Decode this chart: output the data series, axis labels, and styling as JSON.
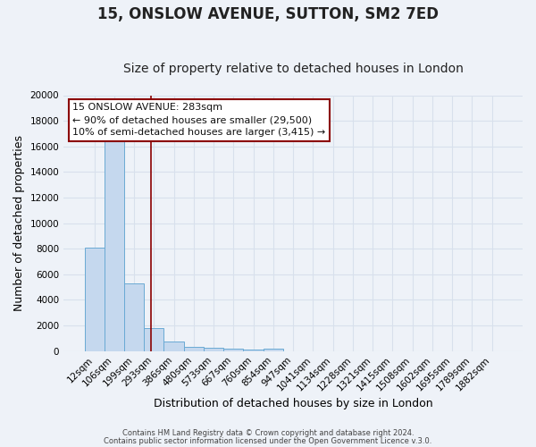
{
  "title": "15, ONSLOW AVENUE, SUTTON, SM2 7ED",
  "subtitle": "Size of property relative to detached houses in London",
  "xlabel": "Distribution of detached houses by size in London",
  "ylabel": "Number of detached properties",
  "bar_labels": [
    "12sqm",
    "106sqm",
    "199sqm",
    "293sqm",
    "386sqm",
    "480sqm",
    "573sqm",
    "667sqm",
    "760sqm",
    "854sqm",
    "947sqm",
    "1041sqm",
    "1134sqm",
    "1228sqm",
    "1321sqm",
    "1415sqm",
    "1508sqm",
    "1602sqm",
    "1695sqm",
    "1789sqm",
    "1882sqm"
  ],
  "bar_values": [
    8100,
    16600,
    5300,
    1800,
    750,
    300,
    250,
    170,
    130,
    150,
    0,
    0,
    0,
    0,
    0,
    0,
    0,
    0,
    0,
    0,
    0
  ],
  "bar_color": "#c5d8ee",
  "bar_edgecolor": "#6aaad4",
  "bar_width": 1.0,
  "vline_x": 2.83,
  "vline_color": "#8b0000",
  "ylim": [
    0,
    20000
  ],
  "yticks": [
    0,
    2000,
    4000,
    6000,
    8000,
    10000,
    12000,
    14000,
    16000,
    18000,
    20000
  ],
  "annotation_title": "15 ONSLOW AVENUE: 283sqm",
  "annotation_line1": "← 90% of detached houses are smaller (29,500)",
  "annotation_line2": "10% of semi-detached houses are larger (3,415) →",
  "annotation_box_color": "#ffffff",
  "annotation_box_edgecolor": "#8b0000",
  "footer_line1": "Contains HM Land Registry data © Crown copyright and database right 2024.",
  "footer_line2": "Contains public sector information licensed under the Open Government Licence v.3.0.",
  "background_color": "#eef2f8",
  "grid_color": "#d8e0ec",
  "title_fontsize": 12,
  "subtitle_fontsize": 10,
  "tick_fontsize": 7.5,
  "ylabel_fontsize": 9,
  "xlabel_fontsize": 9,
  "annotation_fontsize": 8
}
